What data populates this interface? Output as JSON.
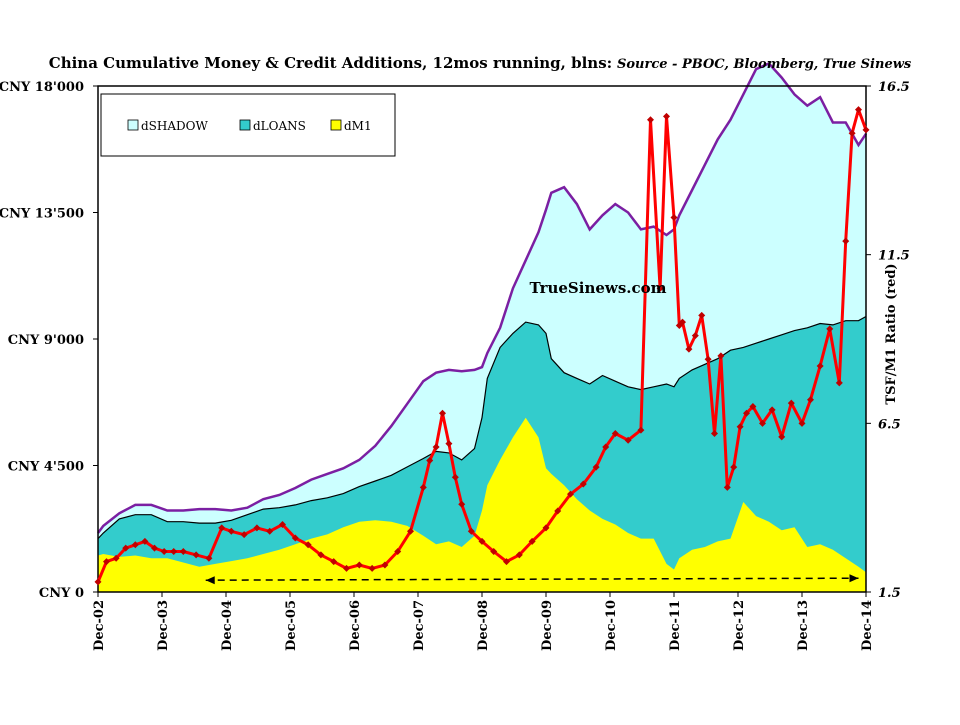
{
  "chart_data": {
    "type": "area",
    "title": "China Cumulative Money & Credit Additions, 12mos running, blns:",
    "subtitle": "Source - PBOC, Bloomberg, True Sinews",
    "watermark": "TrueSinews.com",
    "y_left_ticks": [
      "CNY 0",
      "CNY 4'500",
      "CNY 9'000",
      "CNY 13'500",
      "CNY 18'000"
    ],
    "y_left_values": [
      0,
      4500,
      9000,
      13500,
      18000
    ],
    "ylim_left": [
      0,
      18000
    ],
    "y_right_label": "TSF/M1 Ratio (red)",
    "y_right_ticks": [
      "1.5",
      "6.5",
      "11.5",
      "16.5"
    ],
    "y_right_values": [
      1.5,
      6.5,
      11.5,
      16.5
    ],
    "ylim_right": [
      1.5,
      16.5
    ],
    "x_ticks": [
      "Dec-02",
      "Dec-03",
      "Dec-04",
      "Dec-05",
      "Dec-06",
      "Dec-07",
      "Dec-08",
      "Dec-09",
      "Dec-10",
      "Dec-11",
      "Dec-12",
      "Dec-13",
      "Dec-14"
    ],
    "x_tick_years": [
      2002.917,
      2003.917,
      2004.917,
      2005.917,
      2006.917,
      2007.917,
      2008.917,
      2009.917,
      2010.917,
      2011.917,
      2012.917,
      2013.917,
      2014.917
    ],
    "xlim": [
      2002.917,
      2014.917
    ],
    "legend": {
      "position": "top-left",
      "items": [
        "dSHADOW",
        "dLOANS",
        "dM1"
      ]
    },
    "colors": {
      "shadow_fill": "#ccffff",
      "total_line": "#7b1fa2",
      "loans_fill": "#33cccc",
      "m1_fill": "#ffff00",
      "ratio_line": "#ff0000",
      "ratio_marker": "#c00000",
      "frame": "#000000"
    },
    "series": [
      {
        "name": "dSHADOW",
        "x": [
          2002.917,
          2003.0,
          2003.25,
          2003.5,
          2003.75,
          2004.0,
          2004.25,
          2004.5,
          2004.75,
          2005.0,
          2005.25,
          2005.5,
          2005.75,
          2006.0,
          2006.25,
          2006.5,
          2006.75,
          2007.0,
          2007.25,
          2007.5,
          2007.75,
          2008.0,
          2008.2,
          2008.4,
          2008.6,
          2008.8,
          2008.917,
          2009.0,
          2009.2,
          2009.4,
          2009.6,
          2009.8,
          2009.917,
          2010.0,
          2010.2,
          2010.4,
          2010.6,
          2010.8,
          2011.0,
          2011.2,
          2011.4,
          2011.6,
          2011.8,
          2011.917,
          2012.0,
          2012.2,
          2012.4,
          2012.6,
          2012.8,
          2013.0,
          2013.2,
          2013.4,
          2013.6,
          2013.8,
          2014.0,
          2014.2,
          2014.4,
          2014.6,
          2014.8,
          2014.917
        ],
        "values": [
          2100,
          2350,
          2800,
          3100,
          3100,
          2900,
          2900,
          2950,
          2950,
          2900,
          3000,
          3300,
          3450,
          3700,
          4000,
          4200,
          4400,
          4700,
          5200,
          5900,
          6700,
          7500,
          7800,
          7900,
          7850,
          7900,
          8000,
          8500,
          9400,
          10800,
          11800,
          12800,
          13600,
          14200,
          14400,
          13800,
          12900,
          13400,
          13800,
          13500,
          12900,
          13000,
          12700,
          12900,
          13400,
          14300,
          15200,
          16100,
          16800,
          17700,
          18600,
          18800,
          18300,
          17700,
          17300,
          17600,
          16700,
          16700,
          15900,
          16300
        ]
      },
      {
        "name": "dLOANS",
        "x": [
          2002.917,
          2003.0,
          2003.25,
          2003.5,
          2003.75,
          2004.0,
          2004.25,
          2004.5,
          2004.75,
          2005.0,
          2005.25,
          2005.5,
          2005.75,
          2006.0,
          2006.25,
          2006.5,
          2006.75,
          2007.0,
          2007.25,
          2007.5,
          2007.75,
          2008.0,
          2008.2,
          2008.4,
          2008.6,
          2008.8,
          2008.917,
          2009.0,
          2009.2,
          2009.4,
          2009.6,
          2009.8,
          2009.917,
          2010.0,
          2010.2,
          2010.4,
          2010.6,
          2010.8,
          2011.0,
          2011.2,
          2011.4,
          2011.6,
          2011.8,
          2011.917,
          2012.0,
          2012.2,
          2012.4,
          2012.6,
          2012.8,
          2013.0,
          2013.2,
          2013.4,
          2013.6,
          2013.8,
          2014.0,
          2014.2,
          2014.4,
          2014.6,
          2014.8,
          2014.917
        ],
        "values": [
          1900,
          2100,
          2600,
          2750,
          2750,
          2500,
          2500,
          2450,
          2450,
          2550,
          2750,
          2950,
          3000,
          3100,
          3250,
          3350,
          3500,
          3750,
          3950,
          4150,
          4450,
          4750,
          5000,
          4950,
          4700,
          5100,
          6200,
          7600,
          8700,
          9200,
          9600,
          9500,
          9200,
          8300,
          7800,
          7600,
          7400,
          7700,
          7500,
          7300,
          7200,
          7300,
          7400,
          7300,
          7600,
          7900,
          8100,
          8300,
          8600,
          8700,
          8850,
          9000,
          9150,
          9300,
          9400,
          9550,
          9500,
          9650,
          9650,
          9800
        ]
      },
      {
        "name": "dM1",
        "x": [
          2002.917,
          2003.0,
          2003.25,
          2003.5,
          2003.75,
          2004.0,
          2004.25,
          2004.5,
          2004.75,
          2005.0,
          2005.25,
          2005.5,
          2005.75,
          2006.0,
          2006.25,
          2006.5,
          2006.75,
          2007.0,
          2007.25,
          2007.5,
          2007.75,
          2008.0,
          2008.2,
          2008.4,
          2008.6,
          2008.8,
          2008.917,
          2009.0,
          2009.2,
          2009.4,
          2009.6,
          2009.8,
          2009.917,
          2010.0,
          2010.2,
          2010.4,
          2010.6,
          2010.8,
          2011.0,
          2011.2,
          2011.4,
          2011.6,
          2011.8,
          2011.917,
          2012.0,
          2012.2,
          2012.4,
          2012.6,
          2012.8,
          2013.0,
          2013.2,
          2013.4,
          2013.6,
          2013.8,
          2014.0,
          2014.2,
          2014.4,
          2014.6,
          2014.8,
          2014.917
        ],
        "values": [
          1300,
          1350,
          1250,
          1300,
          1200,
          1200,
          1050,
          900,
          1000,
          1100,
          1200,
          1350,
          1500,
          1700,
          1900,
          2050,
          2300,
          2500,
          2550,
          2500,
          2350,
          2000,
          1700,
          1800,
          1600,
          2000,
          2900,
          3800,
          4700,
          5500,
          6200,
          5500,
          4400,
          4200,
          3800,
          3300,
          2900,
          2600,
          2400,
          2100,
          1900,
          1900,
          1000,
          800,
          1200,
          1500,
          1600,
          1800,
          1900,
          3200,
          2700,
          2500,
          2200,
          2300,
          1600,
          1700,
          1500,
          1200,
          900,
          700
        ]
      },
      {
        "name": "TSF/M1 Ratio (red)",
        "axis": "right",
        "x": [
          2002.917,
          2003.05,
          2003.2,
          2003.35,
          2003.5,
          2003.65,
          2003.8,
          2003.95,
          2004.1,
          2004.25,
          2004.45,
          2004.65,
          2004.85,
          2005.0,
          2005.2,
          2005.4,
          2005.6,
          2005.8,
          2006.0,
          2006.2,
          2006.4,
          2006.6,
          2006.8,
          2007.0,
          2007.2,
          2007.4,
          2007.6,
          2007.8,
          2008.0,
          2008.1,
          2008.2,
          2008.3,
          2008.4,
          2008.5,
          2008.6,
          2008.75,
          2008.917,
          2009.1,
          2009.3,
          2009.5,
          2009.7,
          2009.917,
          2010.1,
          2010.3,
          2010.5,
          2010.7,
          2010.85,
          2011.0,
          2011.2,
          2011.4,
          2011.55,
          2011.7,
          2011.8,
          2011.917,
          2012.0,
          2012.05,
          2012.15,
          2012.25,
          2012.35,
          2012.45,
          2012.55,
          2012.65,
          2012.75,
          2012.85,
          2012.95,
          2013.05,
          2013.15,
          2013.3,
          2013.45,
          2013.6,
          2013.75,
          2013.917,
          2014.05,
          2014.2,
          2014.35,
          2014.5,
          2014.6,
          2014.7,
          2014.8,
          2014.917
        ],
        "values": [
          1.8,
          2.4,
          2.5,
          2.8,
          2.9,
          3.0,
          2.8,
          2.7,
          2.7,
          2.7,
          2.6,
          2.5,
          3.4,
          3.3,
          3.2,
          3.4,
          3.3,
          3.5,
          3.1,
          2.9,
          2.6,
          2.4,
          2.2,
          2.3,
          2.2,
          2.3,
          2.7,
          3.3,
          4.6,
          5.4,
          5.8,
          6.8,
          5.9,
          4.9,
          4.1,
          3.3,
          3.0,
          2.7,
          2.4,
          2.6,
          3.0,
          3.4,
          3.9,
          4.4,
          4.7,
          5.2,
          5.8,
          6.2,
          6.0,
          6.3,
          15.5,
          10.5,
          15.6,
          12.6,
          9.4,
          9.5,
          8.7,
          9.1,
          9.7,
          8.4,
          6.2,
          8.5,
          4.6,
          5.2,
          6.4,
          6.8,
          7.0,
          6.5,
          6.9,
          6.1,
          7.1,
          6.5,
          7.2,
          8.2,
          9.3,
          7.7,
          11.9,
          15.1,
          15.8,
          15.2
        ]
      }
    ]
  }
}
